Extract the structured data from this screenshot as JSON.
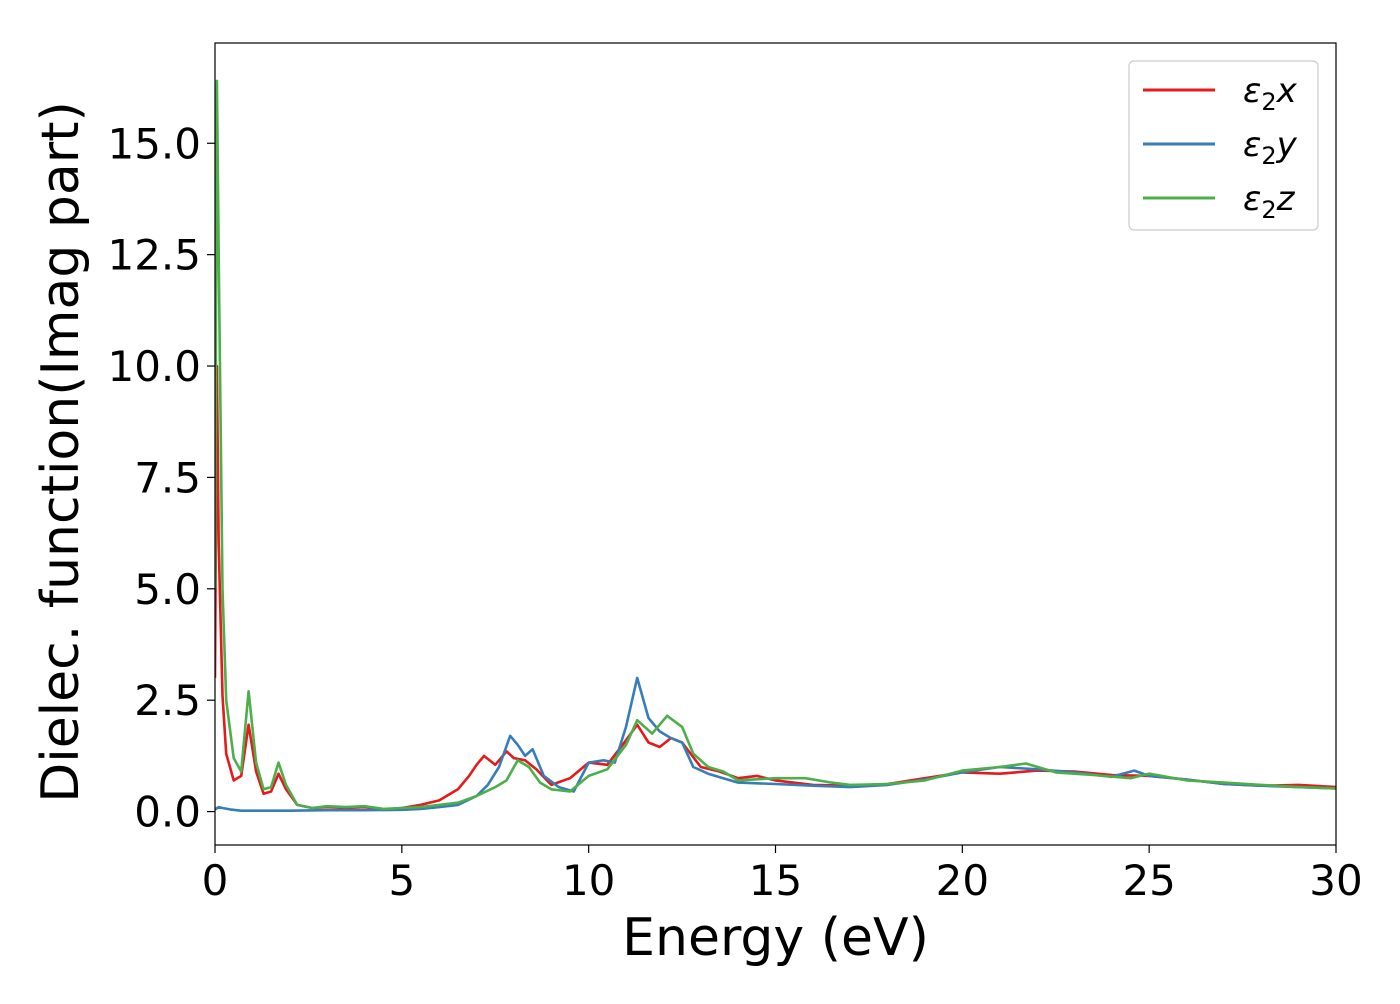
{
  "chart_data": {
    "type": "line",
    "title": "",
    "xlabel": "Energy (eV)",
    "ylabel": "Dielec. function(Imag part)",
    "xlim": [
      0,
      30
    ],
    "ylim": [
      -0.75,
      17.25
    ],
    "xticks": [
      0,
      5,
      10,
      15,
      20,
      25,
      30
    ],
    "xtick_labels": [
      "0",
      "5",
      "10",
      "15",
      "20",
      "25",
      "30"
    ],
    "yticks": [
      0.0,
      2.5,
      5.0,
      7.5,
      10.0,
      12.5,
      15.0
    ],
    "ytick_labels": [
      "0.0",
      "2.5",
      "5.0",
      "7.5",
      "10.0",
      "12.5",
      "15.0"
    ],
    "grid": false,
    "legend_position": "top-right",
    "series": [
      {
        "name": "ε₂x",
        "legend_base": "ε",
        "legend_sub": "2",
        "legend_suffix": "x",
        "color": "#e41a1c",
        "x": [
          0.0,
          0.05,
          0.1,
          0.2,
          0.3,
          0.5,
          0.7,
          0.9,
          1.1,
          1.3,
          1.5,
          1.7,
          1.9,
          2.2,
          2.6,
          3.0,
          3.5,
          4.0,
          4.5,
          5.0,
          5.5,
          6.0,
          6.5,
          6.8,
          7.0,
          7.2,
          7.5,
          7.8,
          8.0,
          8.3,
          8.6,
          9.0,
          9.5,
          10.0,
          10.5,
          11.0,
          11.3,
          11.6,
          11.9,
          12.2,
          12.5,
          13.0,
          13.5,
          14.0,
          14.5,
          15.0,
          16.0,
          17.0,
          18.0,
          19.0,
          20.0,
          21.0,
          22.0,
          23.0,
          24.0,
          25.0,
          26.0,
          27.0,
          28.0,
          29.0,
          30.0
        ],
        "y": [
          3.0,
          10.0,
          6.0,
          2.6,
          1.3,
          0.7,
          0.8,
          1.95,
          0.9,
          0.4,
          0.45,
          0.85,
          0.5,
          0.15,
          0.08,
          0.1,
          0.08,
          0.1,
          0.05,
          0.08,
          0.15,
          0.25,
          0.5,
          0.8,
          1.05,
          1.25,
          1.05,
          1.35,
          1.2,
          1.15,
          0.95,
          0.6,
          0.75,
          1.1,
          1.05,
          1.6,
          1.95,
          1.55,
          1.45,
          1.65,
          1.55,
          1.0,
          0.9,
          0.75,
          0.8,
          0.7,
          0.6,
          0.58,
          0.62,
          0.75,
          0.88,
          0.85,
          0.92,
          0.9,
          0.82,
          0.8,
          0.72,
          0.62,
          0.58,
          0.6,
          0.55
        ]
      },
      {
        "name": "ε₂y",
        "legend_base": "ε",
        "legend_sub": "2",
        "legend_suffix": "y",
        "color": "#377eb8",
        "x": [
          0.0,
          0.1,
          0.2,
          0.4,
          0.7,
          1.0,
          1.5,
          2.0,
          3.0,
          4.0,
          5.0,
          5.5,
          6.0,
          6.5,
          7.0,
          7.3,
          7.6,
          7.9,
          8.1,
          8.3,
          8.5,
          8.8,
          9.2,
          9.6,
          10.0,
          10.4,
          10.7,
          11.0,
          11.3,
          11.6,
          11.9,
          12.2,
          12.5,
          12.8,
          13.2,
          13.6,
          14.0,
          15.0,
          16.0,
          17.0,
          18.0,
          19.0,
          20.0,
          21.0,
          22.0,
          23.0,
          24.0,
          24.6,
          25.0,
          26.0,
          27.0,
          28.0,
          29.0,
          30.0
        ],
        "y": [
          0.05,
          0.1,
          0.08,
          0.05,
          0.02,
          0.02,
          0.02,
          0.02,
          0.03,
          0.03,
          0.04,
          0.06,
          0.1,
          0.15,
          0.35,
          0.6,
          1.0,
          1.7,
          1.5,
          1.25,
          1.4,
          0.8,
          0.55,
          0.45,
          1.1,
          1.15,
          1.1,
          1.9,
          3.0,
          2.1,
          1.8,
          1.65,
          1.55,
          1.0,
          0.85,
          0.75,
          0.65,
          0.62,
          0.58,
          0.55,
          0.6,
          0.72,
          0.88,
          1.0,
          0.95,
          0.88,
          0.78,
          0.92,
          0.8,
          0.72,
          0.62,
          0.58,
          0.55,
          0.52
        ]
      },
      {
        "name": "ε₂z",
        "legend_base": "ε",
        "legend_sub": "2",
        "legend_suffix": "z",
        "color": "#4daf4a",
        "x": [
          0.0,
          0.05,
          0.1,
          0.2,
          0.3,
          0.5,
          0.7,
          0.9,
          1.1,
          1.3,
          1.5,
          1.7,
          1.9,
          2.2,
          2.6,
          3.0,
          3.5,
          4.0,
          4.5,
          5.0,
          5.5,
          6.0,
          6.5,
          7.0,
          7.5,
          7.8,
          8.1,
          8.4,
          8.7,
          9.0,
          9.5,
          10.0,
          10.5,
          11.0,
          11.3,
          11.7,
          12.1,
          12.5,
          12.8,
          13.2,
          13.6,
          14.0,
          15.0,
          15.8,
          16.5,
          17.0,
          18.0,
          19.0,
          20.0,
          21.0,
          21.7,
          22.5,
          23.5,
          24.5,
          25.0,
          26.0,
          27.0,
          28.0,
          29.0,
          30.0
        ],
        "y": [
          5.0,
          16.4,
          12.5,
          5.0,
          2.5,
          1.2,
          0.9,
          2.7,
          1.1,
          0.5,
          0.55,
          1.1,
          0.6,
          0.15,
          0.08,
          0.12,
          0.1,
          0.12,
          0.06,
          0.08,
          0.1,
          0.15,
          0.2,
          0.35,
          0.55,
          0.7,
          1.15,
          1.0,
          0.65,
          0.5,
          0.45,
          0.8,
          0.95,
          1.5,
          2.05,
          1.75,
          2.15,
          1.9,
          1.3,
          1.0,
          0.9,
          0.7,
          0.75,
          0.75,
          0.65,
          0.6,
          0.62,
          0.7,
          0.92,
          1.0,
          1.08,
          0.88,
          0.82,
          0.75,
          0.85,
          0.7,
          0.65,
          0.6,
          0.55,
          0.52
        ]
      }
    ]
  }
}
